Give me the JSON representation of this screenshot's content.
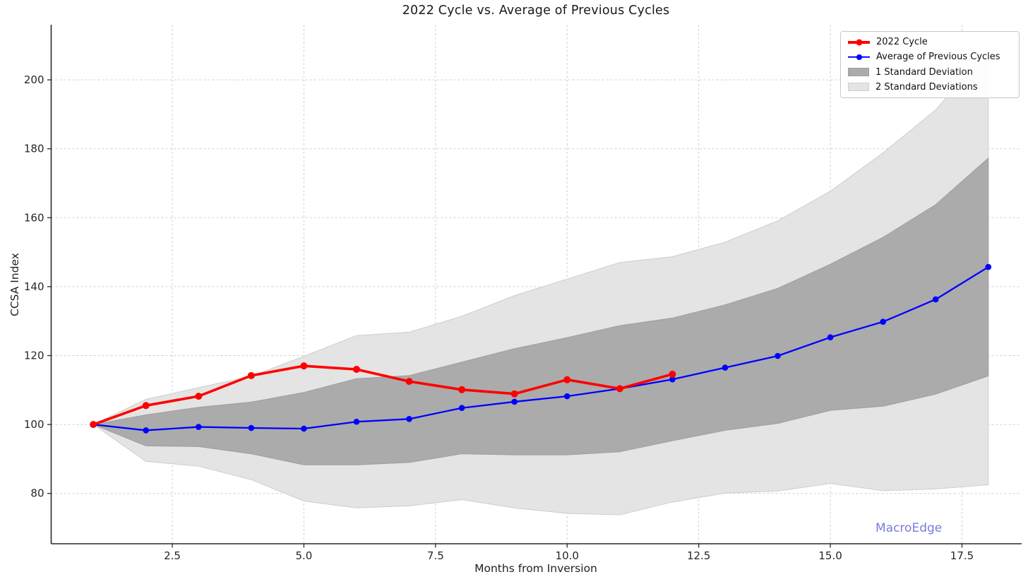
{
  "title": "2022 Cycle vs. Average of Previous Cycles",
  "axis": {
    "xlabel": "Months from Inversion",
    "ylabel": "CCSA Index"
  },
  "legend": {
    "items": [
      {
        "label": "2022 Cycle",
        "swatch": "red-line"
      },
      {
        "label": "Average of Previous Cycles",
        "swatch": "blue-line"
      },
      {
        "label": "1 Standard Deviation",
        "swatch": "dark-patch"
      },
      {
        "label": "2 Standard Deviations",
        "swatch": "light-patch"
      }
    ]
  },
  "watermark": {
    "text": "MacroEdge",
    "color": "#7b7bdc"
  },
  "chart_data": {
    "type": "line",
    "title": "2022 Cycle vs. Average of Previous Cycles",
    "xlabel": "Months from Inversion",
    "ylabel": "CCSA Index",
    "xlim": [
      0.2,
      18.62
    ],
    "ylim": [
      65.4,
      216
    ],
    "grid": true,
    "grid_style": "dashed",
    "grid_color": "#cfcfcf",
    "legend_position": "upper right",
    "x_ticks": [
      2.5,
      5.0,
      7.5,
      10.0,
      12.5,
      15.0,
      17.5
    ],
    "x_tick_labels": [
      "2.5",
      "5.0",
      "7.5",
      "10.0",
      "12.5",
      "15.0",
      "17.5"
    ],
    "y_ticks": [
      80,
      100,
      120,
      140,
      160,
      180,
      200
    ],
    "months": [
      1,
      2,
      3,
      4,
      5,
      6,
      7,
      8,
      9,
      10,
      11,
      12,
      13,
      14,
      15,
      16,
      17,
      18
    ],
    "series": [
      {
        "name": "2022 Cycle",
        "color": "#ff0000",
        "x": [
          1,
          2,
          3,
          4,
          5,
          6,
          7,
          8,
          9,
          10,
          11,
          12
        ],
        "values": [
          100,
          105.5,
          108.2,
          114.2,
          117.0,
          116.0,
          112.5,
          110.1,
          108.9,
          113.0,
          110.4,
          114.6
        ]
      },
      {
        "name": "Average of Previous Cycles",
        "color": "#0000ff",
        "x": [
          1,
          2,
          3,
          4,
          5,
          6,
          7,
          8,
          9,
          10,
          11,
          12,
          13,
          14,
          15,
          16,
          17,
          18
        ],
        "values": [
          100,
          98.3,
          99.3,
          99.0,
          98.8,
          100.8,
          101.6,
          104.8,
          106.6,
          108.2,
          110.4,
          113.1,
          116.5,
          119.9,
          125.3,
          129.8,
          136.3,
          145.7
        ]
      }
    ],
    "std_of_previous_cycles": [
      0,
      4.5,
      5.7,
      7.5,
      10.5,
      12.5,
      12.6,
      13.3,
      15.4,
      17.0,
      18.3,
      17.8,
      18.2,
      19.6,
      21.2,
      24.5,
      27.5,
      31.6
    ],
    "bands": [
      {
        "name": "1 Standard Deviation",
        "multiplier": 1,
        "fill": "#ababab",
        "edge": "#9e9e9e"
      },
      {
        "name": "2 Standard Deviations",
        "multiplier": 2,
        "fill": "#e4e4e4",
        "edge": "#cdcdcd"
      }
    ]
  }
}
